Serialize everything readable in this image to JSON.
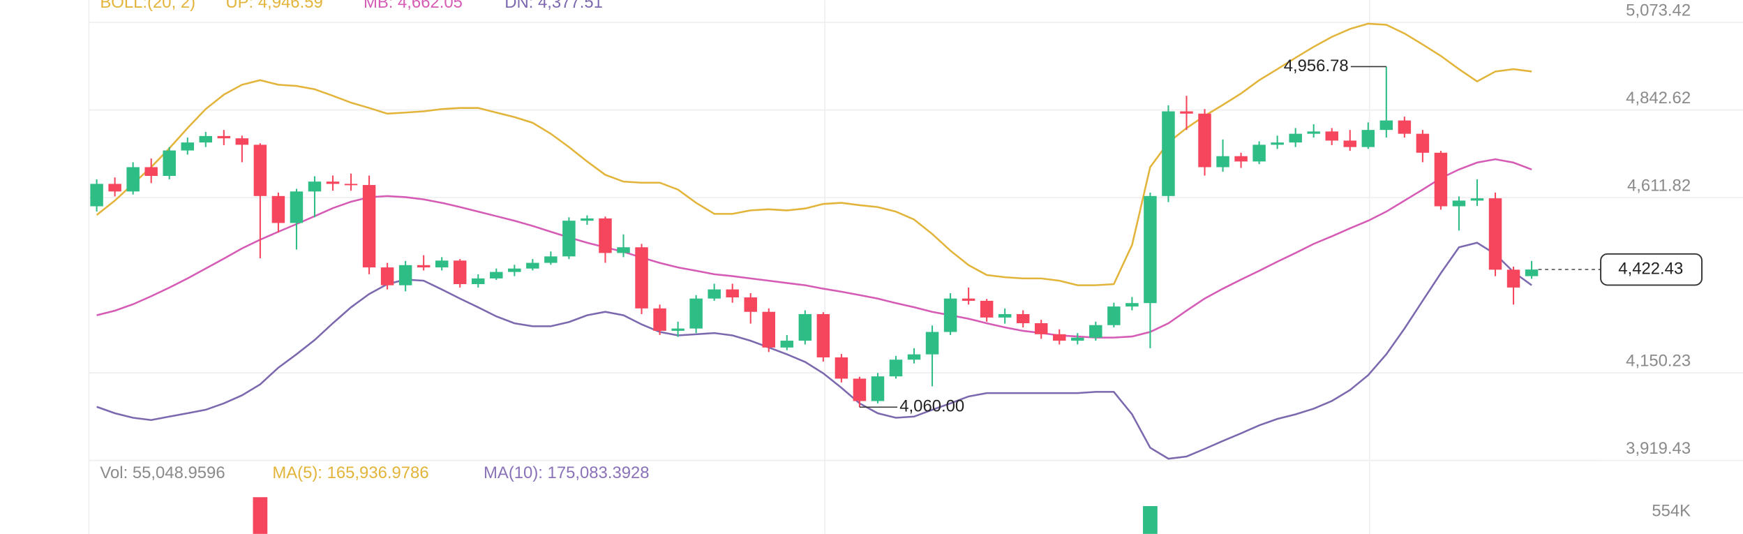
{
  "chart_data": {
    "type": "candlestick",
    "indicator": "BOLL:(20, 2)",
    "up_color": "#2ebd85",
    "down_color": "#f6465d",
    "open": [
      4589,
      4648,
      4628,
      4692,
      4669,
      4736,
      4757,
      4774,
      4768,
      4751,
      4616,
      4545,
      4628,
      4654,
      4648,
      4645,
      4428,
      4381,
      4434,
      4428,
      4446,
      4384,
      4399,
      4416,
      4425,
      4440,
      4457,
      4551,
      4557,
      4466,
      4481,
      4320,
      4261,
      4267,
      4346,
      4370,
      4349,
      4311,
      4217,
      4235,
      4305,
      4191,
      4135,
      4076,
      4141,
      4185,
      4199,
      4258,
      4346,
      4340,
      4296,
      4305,
      4281,
      4252,
      4235,
      4243,
      4276,
      4325,
      4334,
      4616,
      4839,
      4833,
      4692,
      4721,
      4707,
      4751,
      4757,
      4780,
      4786,
      4762,
      4745,
      4790,
      4815,
      4780,
      4730,
      4589,
      4604,
      4610,
      4422,
      4405
    ],
    "high": [
      4660,
      4665,
      4705,
      4715,
      4745,
      4770,
      4785,
      4790,
      4775,
      4755,
      4625,
      4635,
      4668,
      4670,
      4675,
      4670,
      4440,
      4445,
      4460,
      4455,
      4450,
      4410,
      4425,
      4435,
      4450,
      4470,
      4560,
      4565,
      4562,
      4515,
      4490,
      4330,
      4285,
      4355,
      4385,
      4385,
      4360,
      4320,
      4250,
      4315,
      4310,
      4200,
      4140,
      4150,
      4195,
      4215,
      4275,
      4360,
      4375,
      4345,
      4320,
      4315,
      4290,
      4265,
      4255,
      4285,
      4335,
      4350,
      4625,
      4855,
      4880,
      4845,
      4765,
      4730,
      4760,
      4775,
      4795,
      4805,
      4795,
      4790,
      4810,
      4956.78,
      4825,
      4790,
      4735,
      4615,
      4660,
      4625,
      4430,
      4445
    ],
    "low": [
      4575,
      4615,
      4620,
      4650,
      4660,
      4725,
      4745,
      4750,
      4705,
      4452,
      4520,
      4475,
      4560,
      4630,
      4630,
      4410,
      4370,
      4365,
      4420,
      4420,
      4375,
      4375,
      4395,
      4405,
      4420,
      4435,
      4450,
      4540,
      4440,
      4455,
      4305,
      4250,
      4245,
      4255,
      4340,
      4335,
      4280,
      4205,
      4210,
      4225,
      4180,
      4125,
      4060,
      4070,
      4135,
      4175,
      4115,
      4250,
      4330,
      4285,
      4280,
      4270,
      4240,
      4225,
      4225,
      4235,
      4270,
      4315,
      4215,
      4600,
      4790,
      4670,
      4680,
      4690,
      4700,
      4740,
      4745,
      4770,
      4750,
      4735,
      4740,
      4770,
      4770,
      4705,
      4580,
      4525,
      4590,
      4405,
      4330,
      4398
    ],
    "close": [
      4648,
      4628,
      4692,
      4669,
      4736,
      4757,
      4774,
      4768,
      4751,
      4616,
      4545,
      4628,
      4654,
      4648,
      4645,
      4428,
      4381,
      4434,
      4428,
      4446,
      4384,
      4399,
      4416,
      4425,
      4440,
      4457,
      4551,
      4557,
      4466,
      4481,
      4320,
      4261,
      4267,
      4346,
      4370,
      4349,
      4311,
      4217,
      4235,
      4305,
      4191,
      4135,
      4076,
      4141,
      4185,
      4199,
      4258,
      4346,
      4340,
      4296,
      4305,
      4281,
      4252,
      4235,
      4243,
      4276,
      4325,
      4334,
      4616,
      4839,
      4833,
      4692,
      4721,
      4707,
      4751,
      4757,
      4780,
      4786,
      4762,
      4745,
      4790,
      4815,
      4780,
      4730,
      4589,
      4604,
      4610,
      4422,
      4375,
      4422.43
    ],
    "series": [
      {
        "name": "UP: 4,946.59",
        "color": "#e3b43a",
        "values": [
          4566,
          4604,
          4648,
          4692,
          4742,
          4795,
          4845,
          4883,
          4909,
          4921,
          4909,
          4906,
          4897,
          4880,
          4862,
          4848,
          4833,
          4836,
          4839,
          4845,
          4848,
          4848,
          4836,
          4824,
          4809,
          4780,
          4745,
          4707,
          4672,
          4654,
          4651,
          4651,
          4633,
          4598,
          4569,
          4569,
          4578,
          4581,
          4578,
          4583,
          4595,
          4598,
          4592,
          4587,
          4575,
          4554,
          4516,
          4472,
          4434,
          4408,
          4402,
          4399,
          4399,
          4393,
          4381,
          4381,
          4384,
          4487,
          4692,
          4757,
          4795,
          4827,
          4856,
          4886,
          4921,
          4950,
          4980,
          5009,
          5035,
          5056,
          5070,
          5067,
          5044,
          5015,
          4985,
          4950,
          4918,
          4944,
          4950,
          4944
        ]
      },
      {
        "name": "MB: 4,662.05",
        "color": "#d55bb5",
        "values": [
          4302,
          4314,
          4331,
          4352,
          4375,
          4399,
          4425,
          4451,
          4478,
          4501,
          4522,
          4542,
          4563,
          4584,
          4601,
          4613,
          4616,
          4613,
          4607,
          4598,
          4587,
          4575,
          4563,
          4551,
          4537,
          4522,
          4507,
          4493,
          4481,
          4469,
          4454,
          4440,
          4428,
          4419,
          4410,
          4405,
          4399,
          4393,
          4387,
          4381,
          4372,
          4364,
          4355,
          4346,
          4334,
          4323,
          4311,
          4302,
          4293,
          4281,
          4270,
          4261,
          4255,
          4249,
          4246,
          4243,
          4243,
          4246,
          4258,
          4281,
          4314,
          4346,
          4372,
          4396,
          4419,
          4443,
          4466,
          4490,
          4510,
          4531,
          4551,
          4575,
          4604,
          4633,
          4663,
          4686,
          4704,
          4713,
          4704,
          4686
        ]
      },
      {
        "name": "DN: 4,377.51",
        "color": "#7c68ae",
        "values": [
          4061,
          4044,
          4032,
          4026,
          4035,
          4044,
          4053,
          4070,
          4091,
          4120,
          4164,
          4199,
          4237,
          4281,
          4323,
          4358,
          4384,
          4396,
          4393,
          4370,
          4346,
          4323,
          4299,
          4281,
          4273,
          4273,
          4284,
          4302,
          4311,
          4302,
          4278,
          4258,
          4249,
          4252,
          4255,
          4249,
          4235,
          4217,
          4199,
          4179,
          4149,
          4111,
          4070,
          4044,
          4032,
          4035,
          4053,
          4070,
          4088,
          4097,
          4097,
          4097,
          4097,
          4097,
          4097,
          4100,
          4100,
          4041,
          3953,
          3924,
          3930,
          3950,
          3971,
          3991,
          4012,
          4029,
          4041,
          4056,
          4076,
          4105,
          4144,
          4199,
          4267,
          4340,
          4413,
          4481,
          4493,
          4463,
          4416,
          4381
        ]
      }
    ],
    "ylim": [
      3919.43,
      5132
    ],
    "yticks": [
      {
        "value": 5073.42,
        "label": "5,073.42"
      },
      {
        "value": 4842.62,
        "label": "4,842.62"
      },
      {
        "value": 4611.82,
        "label": "4,611.82"
      },
      {
        "value": 4150.23,
        "label": "4,150.23"
      },
      {
        "value": 3919.43,
        "label": "3,919.43"
      }
    ],
    "grid": true,
    "max_label": "4,956.78",
    "min_label": "4,060.00",
    "last_price": {
      "value": 4422.43,
      "label": "4,422.43"
    },
    "volume": {
      "name": "Vol: 55,048.9596",
      "values": [
        null,
        null,
        null,
        null,
        null,
        null,
        null,
        null,
        null,
        600000,
        null,
        null,
        null,
        null,
        null,
        null,
        null,
        null,
        null,
        null,
        null,
        null,
        null,
        null,
        null,
        null,
        null,
        null,
        null,
        null,
        null,
        null,
        null,
        null,
        null,
        null,
        null,
        null,
        null,
        null,
        null,
        null,
        null,
        null,
        null,
        null,
        null,
        null,
        null,
        null,
        null,
        null,
        null,
        null,
        null,
        null,
        null,
        null,
        584000,
        null,
        null,
        null,
        null,
        null,
        null,
        null,
        null,
        null,
        null,
        null,
        null,
        null,
        null,
        null,
        null,
        null,
        null,
        null,
        null,
        null
      ],
      "ylim": [
        534000,
        654000
      ],
      "yticks": [
        {
          "value": 554000,
          "label": "554K"
        }
      ],
      "ma": [
        {
          "name": "MA(5): 165,936.9786",
          "color": "#e3b43a"
        },
        {
          "name": "MA(10): 175,083.3928",
          "color": "#8a72b8"
        }
      ]
    }
  }
}
